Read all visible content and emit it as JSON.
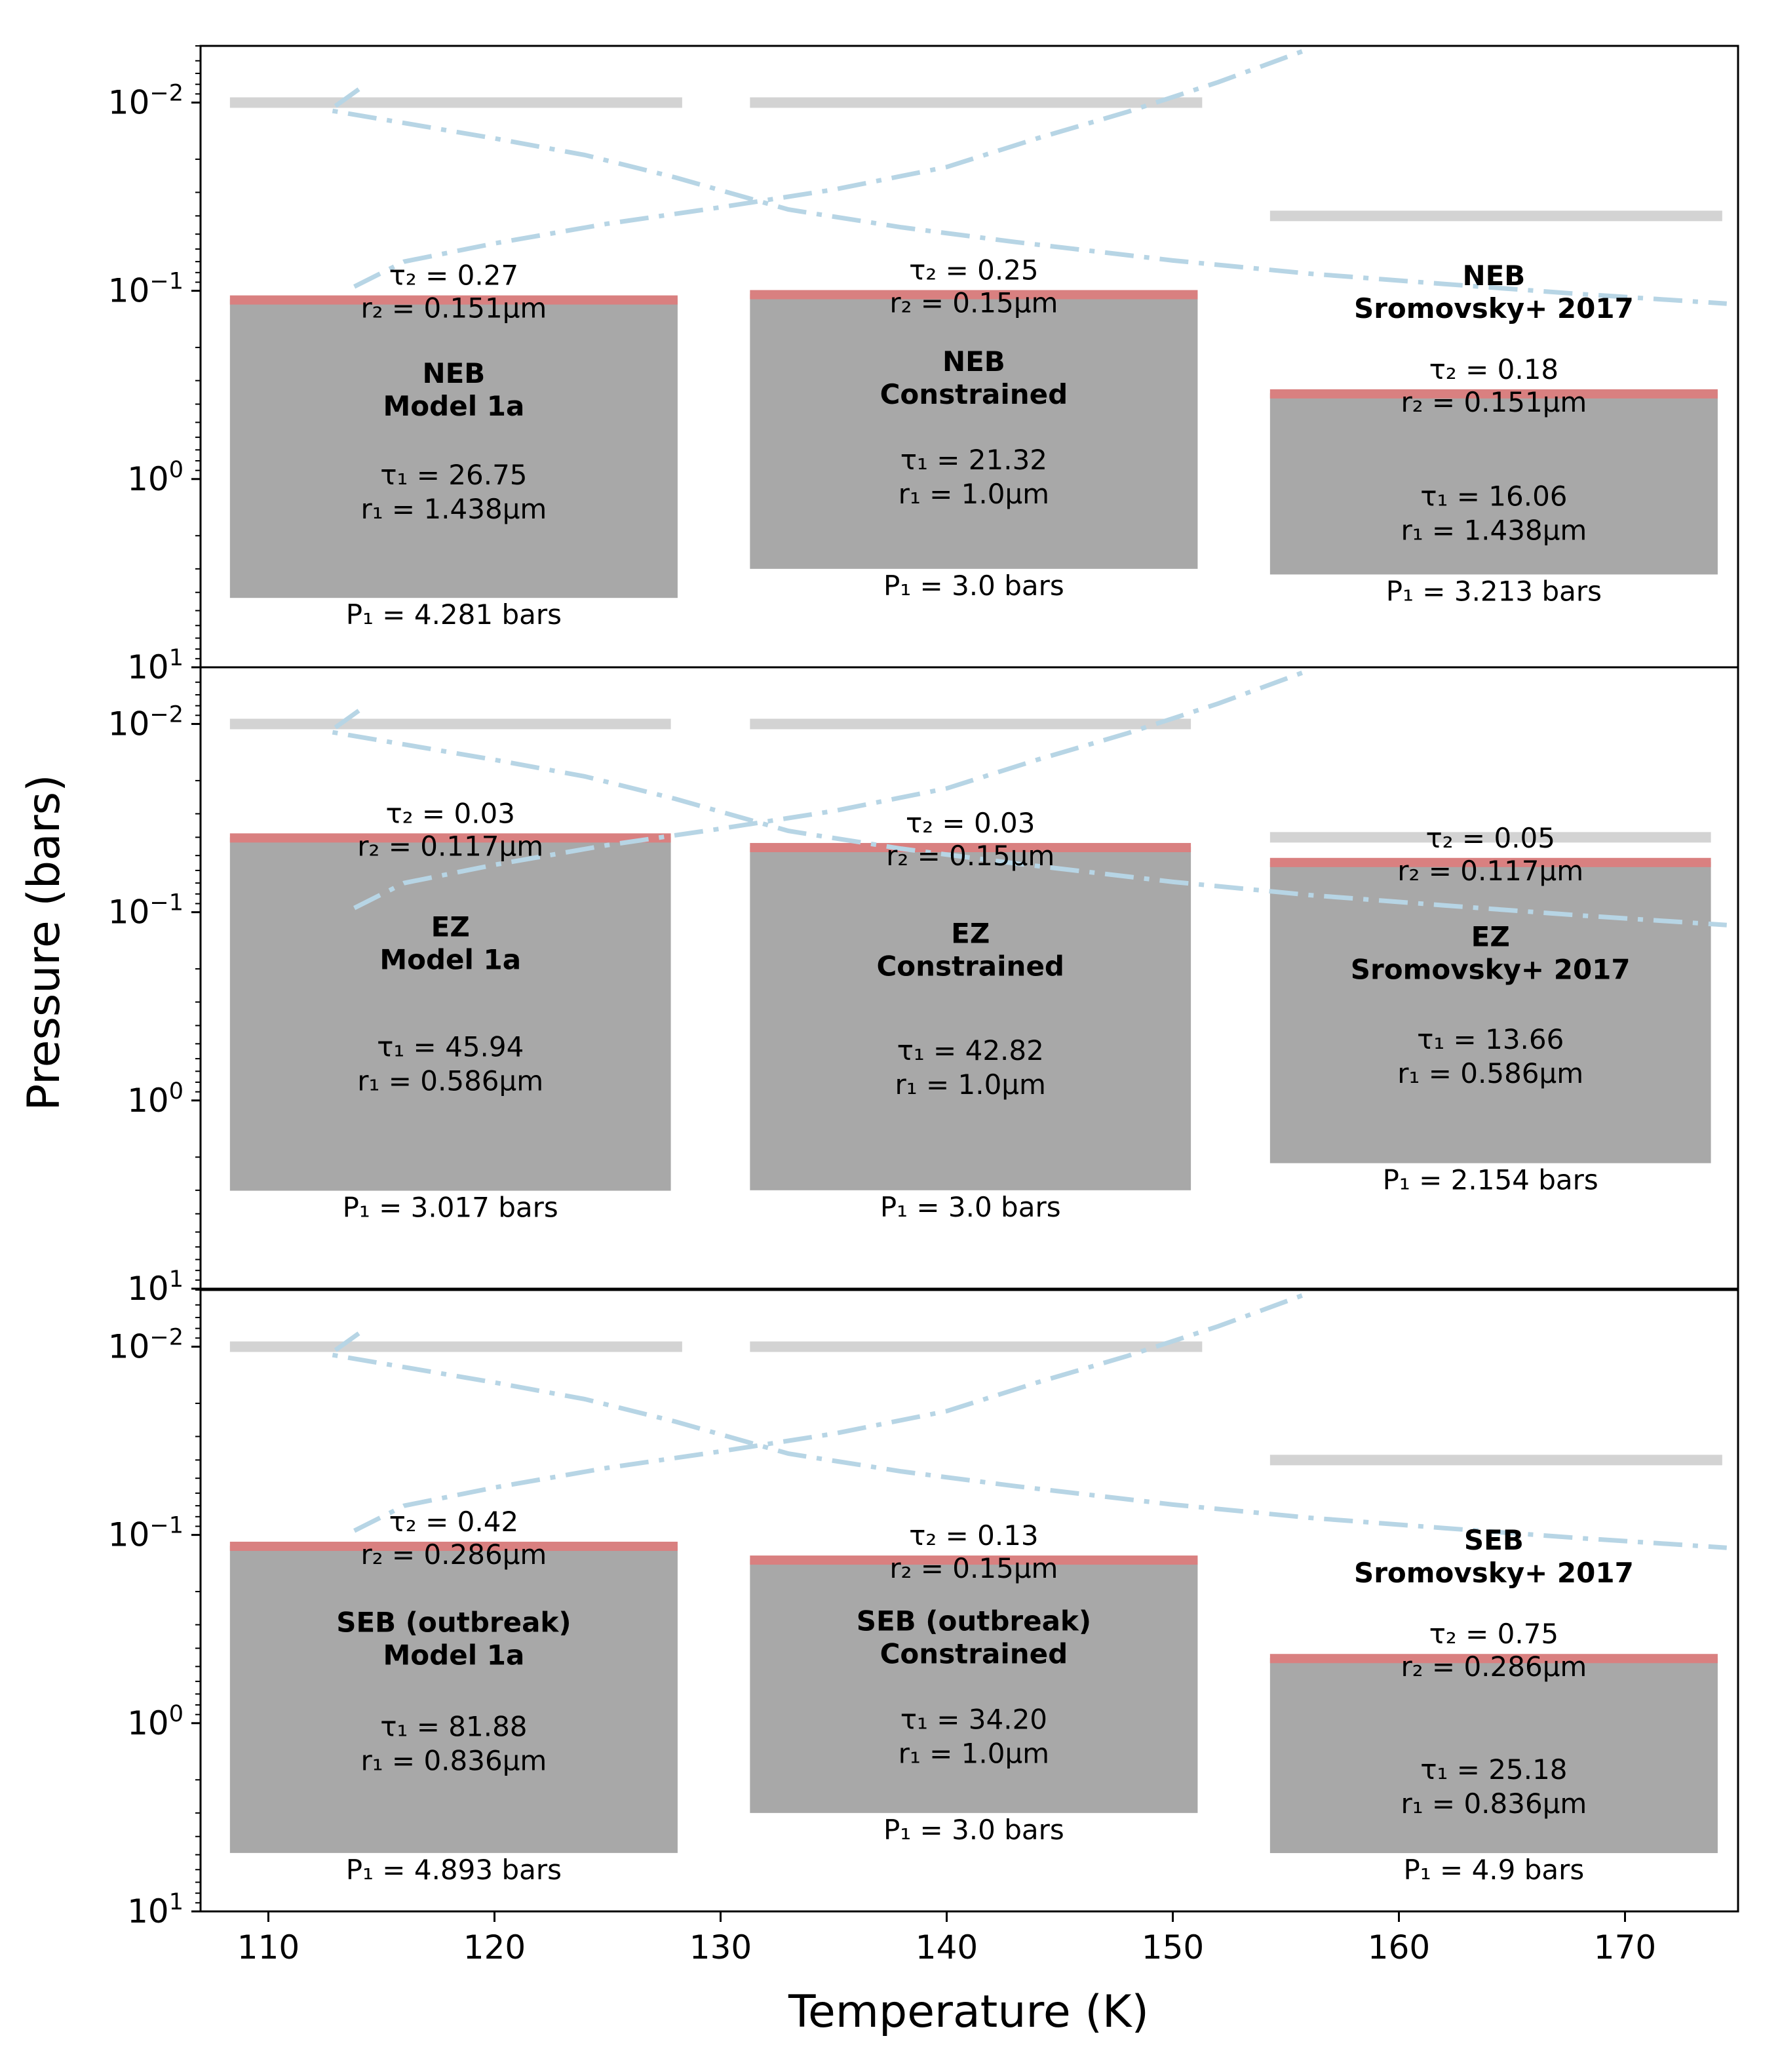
{
  "chart_data": {
    "type": "cloud-structure-profile",
    "xlabel": "Temperature (K)",
    "ylabel": "Pressure (bars)",
    "xlim": [
      107,
      175
    ],
    "ylim": [
      10,
      0.005
    ],
    "yscale": "log",
    "xticks": [
      110,
      120,
      130,
      140,
      150,
      160,
      170
    ],
    "yticks": [
      0.01,
      0.1,
      1,
      10
    ],
    "ytick_labels": [
      {
        "base": "10",
        "exp": "−2"
      },
      {
        "base": "10",
        "exp": "−1"
      },
      {
        "base": "10",
        "exp": "0"
      },
      {
        "base": "10",
        "exp": "1"
      }
    ],
    "temperature_profile": {
      "style": "dash-dot",
      "color": "#b7d5e5",
      "points": [
        [
          114.0,
          0.0085
        ],
        [
          112.7,
          0.011
        ],
        [
          120.0,
          0.0155
        ],
        [
          124.0,
          0.019
        ],
        [
          128.0,
          0.025
        ],
        [
          133.0,
          0.037
        ],
        [
          138.0,
          0.046
        ],
        [
          143.0,
          0.055
        ],
        [
          150.0,
          0.069
        ],
        [
          156.0,
          0.081
        ],
        [
          162.0,
          0.092
        ],
        [
          168.0,
          0.104
        ],
        [
          174.5,
          0.117
        ]
      ],
      "upper_points": [
        [
          113.8,
          0.095
        ],
        [
          116.0,
          0.07
        ],
        [
          120.0,
          0.056
        ],
        [
          125.0,
          0.044
        ],
        [
          130.0,
          0.036
        ],
        [
          135.0,
          0.029
        ],
        [
          140.0,
          0.022
        ],
        [
          144.0,
          0.0155
        ],
        [
          148.0,
          0.0112
        ],
        [
          152.0,
          0.0078
        ],
        [
          156.0,
          0.0052
        ]
      ]
    },
    "panels": [
      {
        "name": "NEB",
        "reference_lines": [
          {
            "x": [
              108.3,
              128.3
            ],
            "p": 0.01
          },
          {
            "x": [
              131.3,
              151.3
            ],
            "p": 0.01
          },
          {
            "x": [
              154.3,
              174.3
            ],
            "p": 0.04
          }
        ],
        "columns": [
          {
            "title": [
              "NEB",
              "Model 1a"
            ],
            "x": [
              108.3,
              128.1
            ],
            "p_top": 0.111,
            "p_bottom": 4.281,
            "tau2": "τ₂ = 0.27",
            "r2": "r₂ = 0.151μm",
            "tau1": "τ₁ = 26.75",
            "r1": "r₁ = 1.438μm",
            "p1": "P₁ = 4.281 bars"
          },
          {
            "title": [
              "NEB",
              "Constrained"
            ],
            "x": [
              131.3,
              151.1
            ],
            "p_top": 0.104,
            "p_bottom": 3.0,
            "tau2": "τ₂ = 0.25",
            "r2": "r₂ = 0.15μm",
            "tau1": "τ₁ = 21.32",
            "r1": "r₁ = 1.0μm",
            "p1": "P₁ = 3.0 bars"
          },
          {
            "title": [
              "NEB",
              "Sromovsky+ 2017"
            ],
            "x": [
              154.3,
              174.1
            ],
            "p_top": 0.35,
            "p_bottom": 3.213,
            "tau2": "τ₂ = 0.18",
            "r2": "r₂ = 0.151μm",
            "tau1": "τ₁ = 16.06",
            "r1": "r₁ = 1.438μm",
            "p1": "P₁ = 3.213 bars"
          }
        ]
      },
      {
        "name": "EZ",
        "reference_lines": [
          {
            "x": [
              108.3,
              127.8
            ],
            "p": 0.01
          },
          {
            "x": [
              131.3,
              150.8
            ],
            "p": 0.01
          },
          {
            "x": [
              154.3,
              173.8
            ],
            "p": 0.04
          }
        ],
        "columns": [
          {
            "title": [
              "EZ",
              "Model 1a"
            ],
            "x": [
              108.3,
              127.8
            ],
            "p_top": 0.04,
            "p_bottom": 3.017,
            "tau2": "τ₂ = 0.03",
            "r2": "r₂ = 0.117μm",
            "tau1": "τ₁ = 45.94",
            "r1": "r₁ = 0.586μm",
            "p1": "P₁ = 3.017 bars"
          },
          {
            "title": [
              "EZ",
              "Constrained"
            ],
            "x": [
              131.3,
              150.8
            ],
            "p_top": 0.045,
            "p_bottom": 3.0,
            "tau2": "τ₂ = 0.03",
            "r2": "r₂ = 0.15μm",
            "tau1": "τ₁ = 42.82",
            "r1": "r₁ = 1.0μm",
            "p1": "P₁ = 3.0 bars"
          },
          {
            "title": [
              "EZ",
              "Sromovsky+ 2017"
            ],
            "x": [
              154.3,
              173.8
            ],
            "p_top": 0.054,
            "p_bottom": 2.154,
            "tau2": "τ₂ = 0.05",
            "r2": "r₂ = 0.117μm",
            "tau1": "τ₁ = 13.66",
            "r1": "r₁ = 0.586μm",
            "p1": "P₁ = 2.154 bars"
          }
        ]
      },
      {
        "name": "SEB",
        "reference_lines": [
          {
            "x": [
              108.3,
              128.3
            ],
            "p": 0.01
          },
          {
            "x": [
              131.3,
              151.3
            ],
            "p": 0.01
          },
          {
            "x": [
              154.3,
              174.3
            ],
            "p": 0.04
          }
        ],
        "columns": [
          {
            "title": [
              "SEB (outbreak)",
              "Model 1a"
            ],
            "x": [
              108.3,
              128.1
            ],
            "p_top": 0.114,
            "p_bottom": 4.893,
            "tau2": "τ₂ = 0.42",
            "r2": "r₂ = 0.286μm",
            "tau1": "τ₁ = 81.88",
            "r1": "r₁ = 0.836μm",
            "p1": "P₁ = 4.893 bars"
          },
          {
            "title": [
              "SEB (outbreak)",
              "Constrained"
            ],
            "x": [
              131.3,
              151.1
            ],
            "p_top": 0.135,
            "p_bottom": 3.0,
            "tau2": "τ₂ = 0.13",
            "r2": "r₂ = 0.15μm",
            "tau1": "τ₁ = 34.20",
            "r1": "r₁ = 1.0μm",
            "p1": "P₁ = 3.0 bars"
          },
          {
            "title": [
              "SEB",
              "Sromovsky+ 2017"
            ],
            "x": [
              154.3,
              174.1
            ],
            "p_top": 0.45,
            "p_bottom": 4.9,
            "tau2": "τ₂ = 0.75",
            "r2": "r₂ = 0.286μm",
            "tau1": "τ₁ = 25.18",
            "r1": "r₁ = 0.836μm",
            "p1": "P₁ = 4.9 bars"
          }
        ]
      }
    ],
    "colors": {
      "cloud": "#a8a8a8",
      "haze": "#d98080",
      "reference": "#d3d3d3",
      "profile": "#b7d5e5"
    }
  }
}
